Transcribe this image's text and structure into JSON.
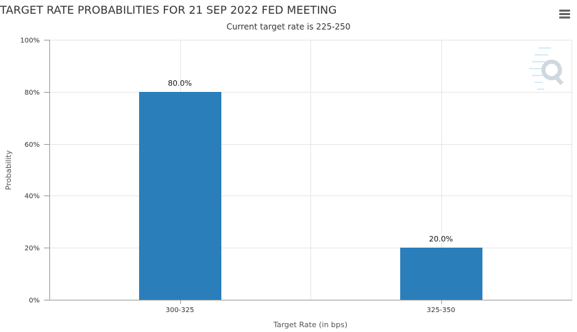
{
  "header": {
    "title": "TARGET RATE PROBABILITIES FOR 21 SEP 2022 FED MEETING",
    "subtitle": "Current target rate is 225-250",
    "menu_icon": "hamburger-menu-icon",
    "watermark_icon": "q-logo-icon"
  },
  "colors": {
    "bar": "#2a7fba",
    "grid": "#e6e6e6",
    "axis": "#999999",
    "watermark": "#cfd8de"
  },
  "chart_data": {
    "type": "bar",
    "title": "TARGET RATE PROBABILITIES FOR 21 SEP 2022 FED MEETING",
    "subtitle": "Current target rate is 225-250",
    "categories": [
      "300-325",
      "325-350"
    ],
    "series": [
      {
        "values": [
          80.0,
          20.0
        ]
      }
    ],
    "data_labels": [
      "80.0%",
      "20.0%"
    ],
    "xlabel": "Target Rate (in bps)",
    "ylabel": "Probability",
    "ylim": [
      0,
      100
    ],
    "yticks": [
      0,
      20,
      40,
      60,
      80,
      100
    ],
    "ytick_labels": [
      "0%",
      "20%",
      "40%",
      "60%",
      "80%",
      "100%"
    ],
    "grid": true,
    "legend": "none"
  }
}
